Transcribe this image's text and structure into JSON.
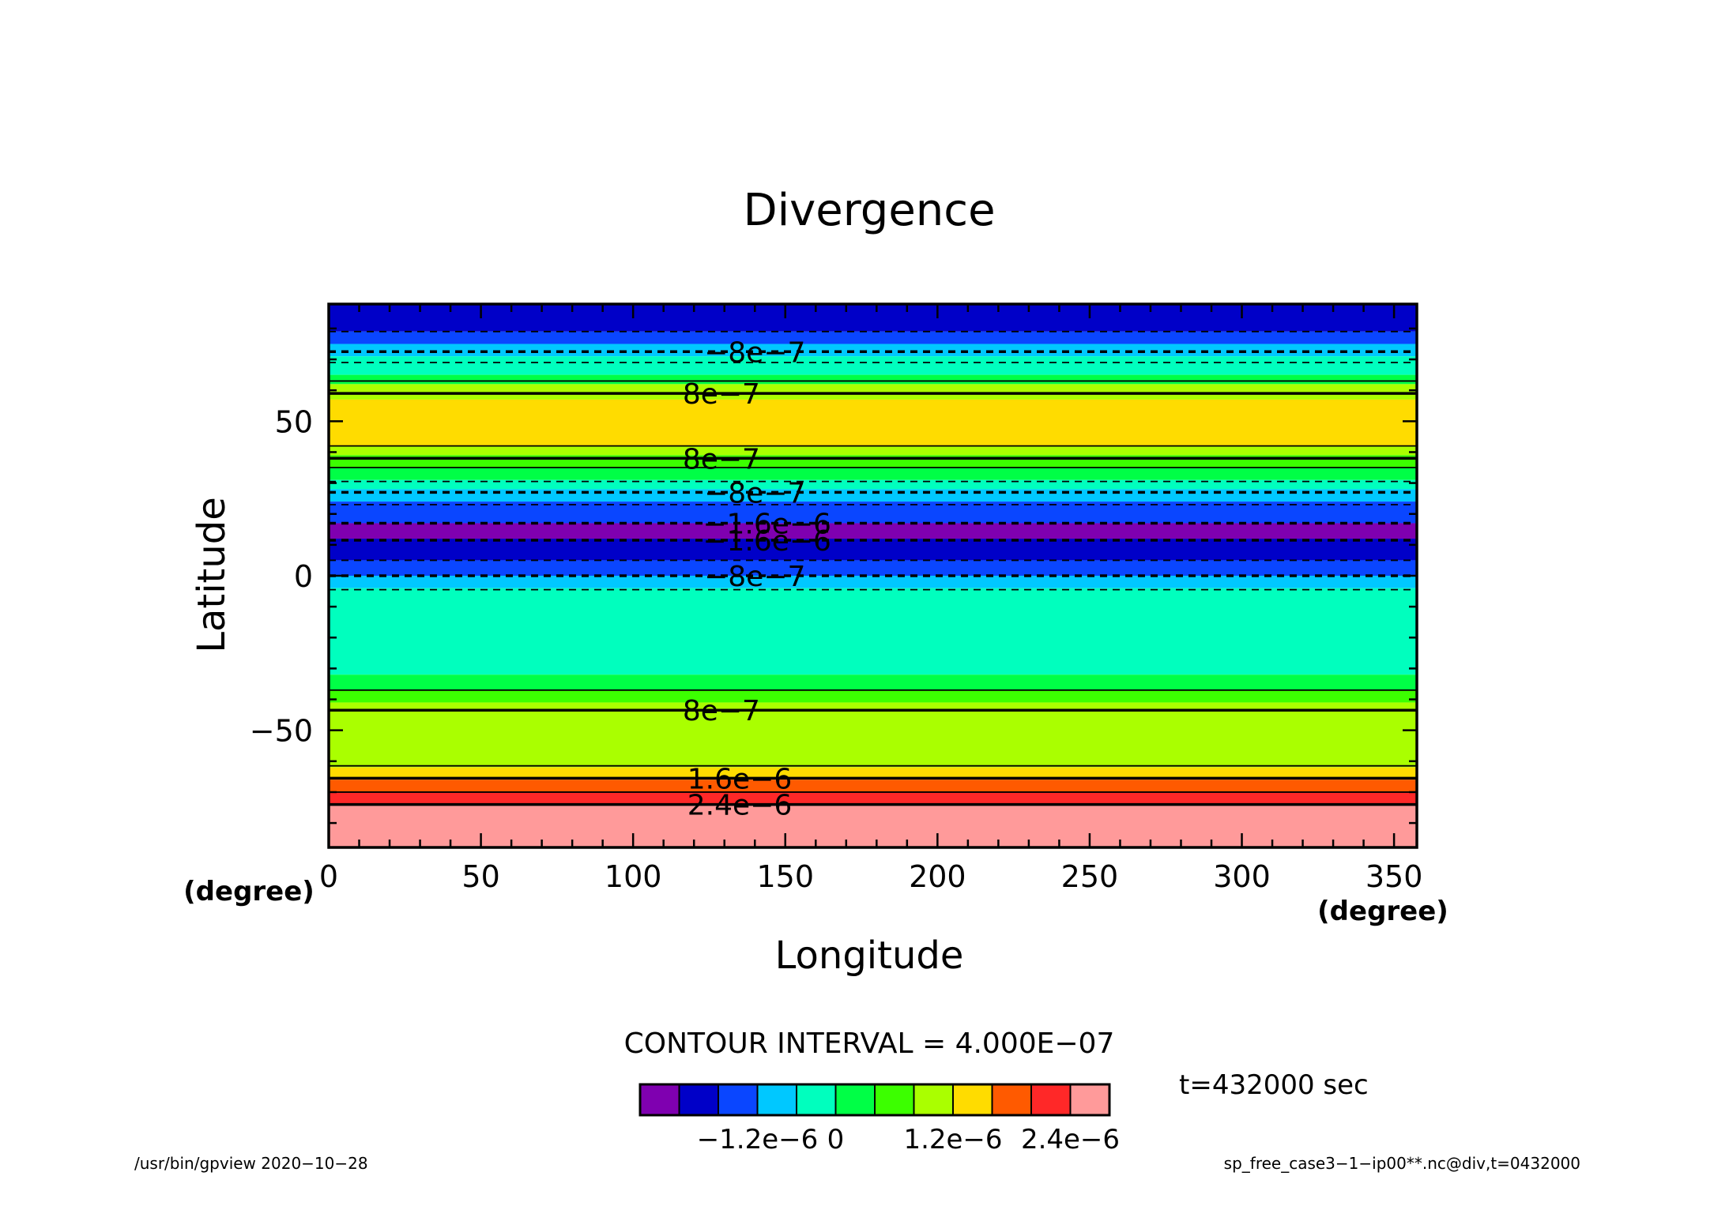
{
  "chart_data": {
    "type": "heatmap",
    "title": "Divergence",
    "xlabel": "Longitude",
    "ylabel": "Latitude",
    "x_unit": "(degree)",
    "x_unit_left": "(degree)",
    "xlim": [
      0,
      357.5
    ],
    "ylim": [
      -87.9,
      87.9
    ],
    "xticks": [
      0,
      50,
      100,
      150,
      200,
      250,
      300,
      350
    ],
    "xtick_labels": [
      "0",
      "50",
      "100",
      "150",
      "200",
      "250",
      "300",
      "350"
    ],
    "yticks": [
      50,
      0,
      -50
    ],
    "ytick_labels": [
      "50",
      "0",
      "−50"
    ],
    "contour_interval_label": "CONTOUR INTERVAL = 4.000E−07",
    "time_label": "t=432000 sec",
    "colorbar": {
      "colors": [
        "#7f00b0",
        "#0000c8",
        "#0a46ff",
        "#00c8ff",
        "#00ffbe",
        "#00ff46",
        "#3cff00",
        "#aaff00",
        "#ffdc00",
        "#ff5a00",
        "#ff2828",
        "#ff9a9a"
      ],
      "tick_labels": [
        "−1.2e−6",
        "0",
        "1.2e−6",
        "2.4e−6"
      ],
      "tick_positions_color_index": [
        3,
        5,
        8,
        11
      ]
    },
    "bands": [
      {
        "lat_top": 87.9,
        "lat_bottom": 79.0,
        "color": "#0000c8"
      },
      {
        "lat_top": 79.0,
        "lat_bottom": 75.0,
        "color": "#0a46ff"
      },
      {
        "lat_top": 75.0,
        "lat_bottom": 71.0,
        "color": "#00c8ff"
      },
      {
        "lat_top": 71.0,
        "lat_bottom": 65.0,
        "color": "#00ffbe"
      },
      {
        "lat_top": 65.0,
        "lat_bottom": 62.0,
        "color": "#00ff46"
      },
      {
        "lat_top": 62.0,
        "lat_bottom": 57.0,
        "color": "#aaff00"
      },
      {
        "lat_top": 57.0,
        "lat_bottom": 42.0,
        "color": "#ffdc00"
      },
      {
        "lat_top": 42.0,
        "lat_bottom": 39.0,
        "color": "#aaff00"
      },
      {
        "lat_top": 39.0,
        "lat_bottom": 35.0,
        "color": "#3cff00"
      },
      {
        "lat_top": 35.0,
        "lat_bottom": 31.0,
        "color": "#00ff46"
      },
      {
        "lat_top": 31.0,
        "lat_bottom": 28.0,
        "color": "#00ffbe"
      },
      {
        "lat_top": 28.0,
        "lat_bottom": 24.0,
        "color": "#00c8ff"
      },
      {
        "lat_top": 24.0,
        "lat_bottom": 17.0,
        "color": "#0a46ff"
      },
      {
        "lat_top": 17.0,
        "lat_bottom": 12.0,
        "color": "#7f00b0"
      },
      {
        "lat_top": 12.0,
        "lat_bottom": 5.0,
        "color": "#0000c8"
      },
      {
        "lat_top": 5.0,
        "lat_bottom": 0.0,
        "color": "#0a46ff"
      },
      {
        "lat_top": 0.0,
        "lat_bottom": -4.0,
        "color": "#00c8ff"
      },
      {
        "lat_top": -4.0,
        "lat_bottom": -32.0,
        "color": "#00ffbe"
      },
      {
        "lat_top": -32.0,
        "lat_bottom": -37.0,
        "color": "#00ff46"
      },
      {
        "lat_top": -37.0,
        "lat_bottom": -41.0,
        "color": "#3cff00"
      },
      {
        "lat_top": -41.0,
        "lat_bottom": -62.0,
        "color": "#aaff00"
      },
      {
        "lat_top": -62.0,
        "lat_bottom": -66.0,
        "color": "#ffdc00"
      },
      {
        "lat_top": -66.0,
        "lat_bottom": -70.0,
        "color": "#ff5a00"
      },
      {
        "lat_top": -70.0,
        "lat_bottom": -74.0,
        "color": "#ff2828"
      },
      {
        "lat_top": -74.0,
        "lat_bottom": -87.9,
        "color": "#ff9a9a"
      }
    ],
    "contour_lines": [
      {
        "lat": 79.0,
        "style": "dashed",
        "thick": false
      },
      {
        "lat": 72.5,
        "style": "dashed",
        "thick": true
      },
      {
        "lat": 69.0,
        "style": "dashed",
        "thick": false
      },
      {
        "lat": 63.0,
        "style": "solid",
        "thick": false
      },
      {
        "lat": 59.0,
        "style": "solid",
        "thick": true
      },
      {
        "lat": 42.0,
        "style": "solid",
        "thick": false
      },
      {
        "lat": 38.0,
        "style": "solid",
        "thick": true
      },
      {
        "lat": 35.0,
        "style": "solid",
        "thick": false
      },
      {
        "lat": 30.5,
        "style": "dashed",
        "thick": false
      },
      {
        "lat": 27.0,
        "style": "dashed",
        "thick": true
      },
      {
        "lat": 23.0,
        "style": "dashed",
        "thick": false
      },
      {
        "lat": 17.0,
        "style": "dashed",
        "thick": true
      },
      {
        "lat": 11.5,
        "style": "dashed",
        "thick": true
      },
      {
        "lat": 5.0,
        "style": "dashed",
        "thick": false
      },
      {
        "lat": 0.0,
        "style": "dashed",
        "thick": true
      },
      {
        "lat": -4.5,
        "style": "dashed",
        "thick": false
      },
      {
        "lat": -37.0,
        "style": "solid",
        "thick": false
      },
      {
        "lat": -43.5,
        "style": "solid",
        "thick": true
      },
      {
        "lat": -61.5,
        "style": "solid",
        "thick": false
      },
      {
        "lat": -65.5,
        "style": "solid",
        "thick": true
      },
      {
        "lat": -70.0,
        "style": "solid",
        "thick": false
      },
      {
        "lat": -74.0,
        "style": "solid",
        "thick": true
      }
    ],
    "contour_labels": [
      {
        "text": "−8e−7",
        "lat": 72.5,
        "lon": 140
      },
      {
        "text": "8e−7",
        "lat": 59.0,
        "lon": 129
      },
      {
        "text": "8e−7",
        "lat": 38.0,
        "lon": 129
      },
      {
        "text": "−8e−7",
        "lat": 27.0,
        "lon": 140
      },
      {
        "text": "−1.6e−6",
        "lat": 17.0,
        "lon": 144
      },
      {
        "text": "−1.6e−6",
        "lat": 11.5,
        "lon": 144
      },
      {
        "text": "−8e−7",
        "lat": 0.0,
        "lon": 140
      },
      {
        "text": "8e−7",
        "lat": -43.5,
        "lon": 129
      },
      {
        "text": "1.6e−6",
        "lat": -65.5,
        "lon": 135
      },
      {
        "text": "2.4e−6",
        "lat": -74.0,
        "lon": 135
      }
    ]
  },
  "footer": {
    "left": "/usr/bin/gpview   2020−10−28",
    "right": "sp_free_case3−1−ip00**.nc@div,t=0432000"
  }
}
